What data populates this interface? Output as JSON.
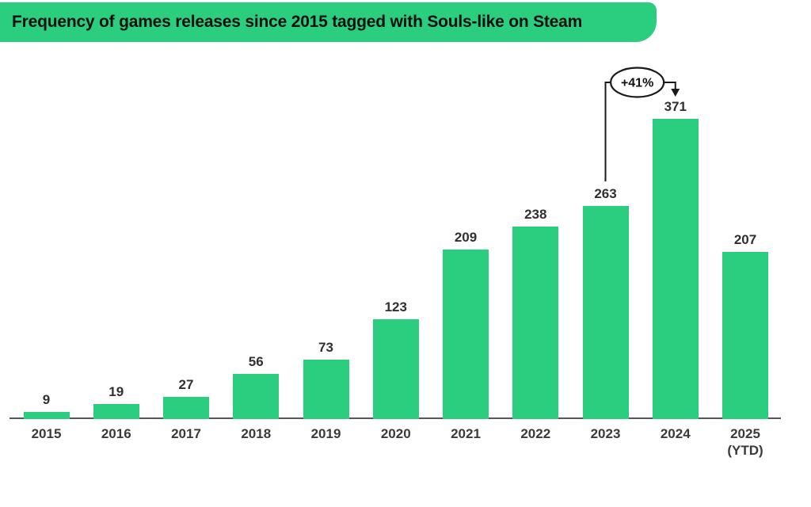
{
  "title": "Frequency of games releases since 2015 tagged with Souls-like on Steam",
  "chart_data": {
    "type": "bar",
    "title": "Frequency of games releases since 2015 tagged with Souls-like on Steam",
    "categories": [
      "2015",
      "2016",
      "2017",
      "2018",
      "2019",
      "2020",
      "2021",
      "2022",
      "2023",
      "2024",
      "2025"
    ],
    "category_sublabels": [
      "",
      "",
      "",
      "",
      "",
      "",
      "",
      "",
      "",
      "",
      "(YTD)"
    ],
    "values": [
      9,
      19,
      27,
      56,
      73,
      123,
      209,
      238,
      263,
      371,
      207
    ],
    "xlabel": "",
    "ylabel": "",
    "ylim": [
      0,
      380
    ],
    "grid": false,
    "legend": false,
    "bar_color": "#2bce7f",
    "axis_color": "#55565a",
    "label_color": "#3a3a3a",
    "banner_color": "#2bce7f",
    "annotation": {
      "text": "+41%",
      "from_category": "2023",
      "to_category": "2024"
    }
  }
}
